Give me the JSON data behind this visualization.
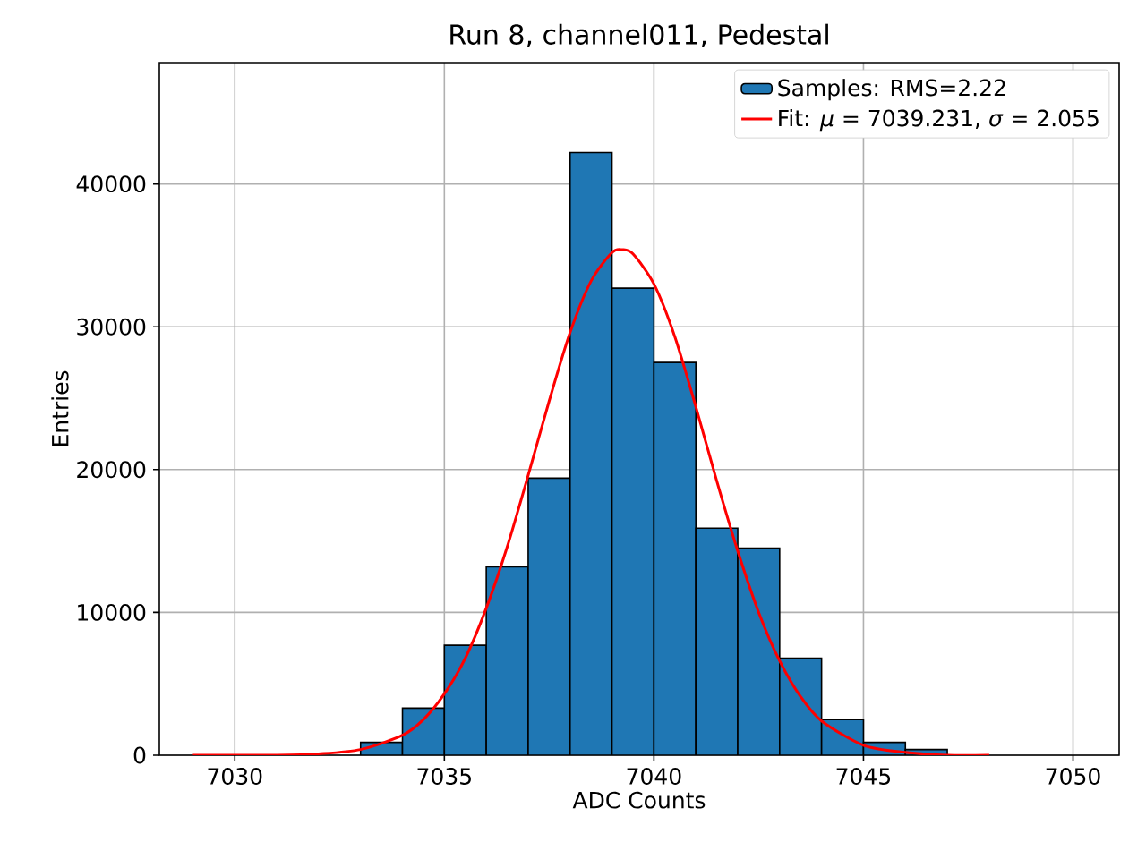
{
  "chart_data": {
    "type": "histogram",
    "title": "Run 8, channel011, Pedestal",
    "xlabel": "ADC Counts",
    "ylabel": "Entries",
    "bins": [
      7033,
      7034,
      7035,
      7036,
      7037,
      7038,
      7039,
      7040,
      7041,
      7042,
      7043,
      7044,
      7045,
      7046,
      7047
    ],
    "series": [
      {
        "name": "Samples: RMS=2.22",
        "color": "#1f77b4",
        "values": [
          900,
          3300,
          7700,
          13200,
          19400,
          42200,
          32700,
          27500,
          15900,
          14500,
          6800,
          2500,
          900,
          400
        ]
      },
      {
        "name": "Fit: *μ* = 7039.231, *σ* = 2.055",
        "type": "line",
        "color": "#ff0000",
        "x": [
          7029,
          7030,
          7031,
          7032,
          7033,
          7034,
          7034.5,
          7035,
          7035.5,
          7036,
          7036.5,
          7037,
          7037.5,
          7038,
          7038.5,
          7039,
          7039.25,
          7039.5,
          7040,
          7040.5,
          7041,
          7041.5,
          7042,
          7042.5,
          7043,
          7043.5,
          7044,
          7045,
          7046,
          7047,
          7048
        ],
        "values": [
          0,
          0,
          0,
          100,
          400,
          1400,
          2500,
          4300,
          6800,
          10300,
          14600,
          19600,
          24800,
          29600,
          33200,
          35200,
          35400,
          35100,
          33000,
          29300,
          24400,
          19200,
          14300,
          10000,
          6600,
          4100,
          2400,
          700,
          200,
          0,
          0
        ]
      }
    ],
    "xlim": [
      7028.2,
      7051.1
    ],
    "ylim": [
      0,
      48500
    ],
    "xticks": [
      7030,
      7035,
      7040,
      7045,
      7050
    ],
    "yticks": [
      0,
      10000,
      20000,
      30000,
      40000
    ],
    "grid": true,
    "legend": "top right",
    "marker": "none",
    "line_style": "solid"
  }
}
